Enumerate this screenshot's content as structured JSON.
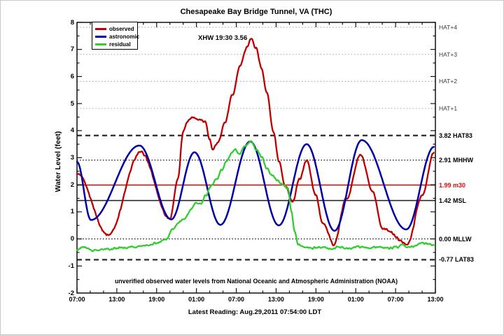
{
  "footnote": "unverified observed water levels from National Oceanic and Atmospheric Administration (NOAA)",
  "caption": "Latest Reading: Aug.29,2011 07:54:00 LDT",
  "chart_data": {
    "type": "line",
    "title": "Chesapeake Bay Bridge Tunnel, VA (THC)",
    "xlabel": "",
    "ylabel": "Water Level (feet)",
    "xlim": [
      0,
      54
    ],
    "ylim": [
      -2,
      8
    ],
    "grid": false,
    "legend_position": "top-left",
    "x_unit": "hours from first tick (6-hour label interval, minor ticks every 2 hours)",
    "x_tick_hours": [
      0,
      6,
      12,
      18,
      24,
      30,
      36,
      42,
      48,
      54
    ],
    "x_tick_labels": [
      "07:00",
      "13:00",
      "19:00",
      "01:00",
      "07:00",
      "13:00",
      "19:00",
      "01:00",
      "07:00",
      "13:00"
    ],
    "y_tick_values": [
      8,
      7,
      6,
      5,
      4,
      3,
      2,
      1,
      0,
      -1,
      -2
    ],
    "y_minor_step": 0.5,
    "annotations": [
      {
        "text": "XHW 19:30 3.56",
        "x_hours": 18.2,
        "y_value": 7.5
      }
    ],
    "reference_lines": [
      {
        "value": 7.82,
        "label": "HAT+4",
        "style": "dotted",
        "line_color": "#aaaaaa",
        "label_color": "#3a3a3a",
        "bold": false
      },
      {
        "value": 6.82,
        "label": "HAT+3",
        "style": "dotted",
        "line_color": "#aaaaaa",
        "label_color": "#3a3a3a",
        "bold": false
      },
      {
        "value": 5.82,
        "label": "HAT+2",
        "style": "dotted",
        "line_color": "#aaaaaa",
        "label_color": "#3a3a3a",
        "bold": false
      },
      {
        "value": 4.82,
        "label": "HAT+1",
        "style": "dotted",
        "line_color": "#aaaaaa",
        "label_color": "#3a3a3a",
        "bold": false
      },
      {
        "value": 3.82,
        "label": "3.82 HAT83",
        "style": "dashed",
        "line_color": "#2b2b2b",
        "label_color": "#000000",
        "bold": true
      },
      {
        "value": 2.91,
        "label": "2.91 MHHW",
        "style": "dotted",
        "line_color": "#1a1a1a",
        "label_color": "#000000",
        "bold": true
      },
      {
        "value": 1.99,
        "label": "1.99 m30",
        "style": "solid",
        "line_color": "#cc1111",
        "label_color": "#cc1111",
        "bold": true
      },
      {
        "value": 1.42,
        "label": "1.42 MSL",
        "style": "solid",
        "line_color": "#2b2b2b",
        "label_color": "#000000",
        "bold": true
      },
      {
        "value": 0.0,
        "label": "0.00 MLLW",
        "style": "dotted",
        "line_color": "#1a1a1a",
        "label_color": "#000000",
        "bold": true
      },
      {
        "value": -0.77,
        "label": "-0.77 LAT83",
        "style": "dashed",
        "line_color": "#2b2b2b",
        "label_color": "#000000",
        "bold": true
      }
    ],
    "series": [
      {
        "name": "observed",
        "color": "#c00000",
        "width": 2.3,
        "noise": 0.05,
        "points": [
          [
            0,
            2.4
          ],
          [
            4.7,
            0.15
          ],
          [
            9.6,
            3.2
          ],
          [
            14.0,
            0.75
          ],
          [
            15.2,
            2.2
          ],
          [
            16.0,
            3.95
          ],
          [
            16.6,
            4.35
          ],
          [
            17.4,
            4.5
          ],
          [
            18.4,
            4.42
          ],
          [
            19.3,
            4.35
          ],
          [
            20.0,
            3.7
          ],
          [
            20.4,
            3.3
          ],
          [
            21.2,
            3.55
          ],
          [
            22.3,
            4.3
          ],
          [
            23.4,
            5.3
          ],
          [
            24.6,
            6.4
          ],
          [
            25.6,
            7.1
          ],
          [
            26.2,
            7.4
          ],
          [
            27.0,
            7.05
          ],
          [
            27.8,
            6.3
          ],
          [
            28.6,
            5.4
          ],
          [
            29.6,
            3.95
          ],
          [
            30.4,
            2.9
          ],
          [
            31.4,
            1.95
          ],
          [
            32.5,
            1.35
          ],
          [
            33.5,
            2.2
          ],
          [
            34.6,
            2.9
          ],
          [
            36.0,
            1.6
          ],
          [
            37.0,
            0.6
          ],
          [
            38.7,
            -0.2
          ],
          [
            40.6,
            1.5
          ],
          [
            42.7,
            3.1
          ],
          [
            44.6,
            1.7
          ],
          [
            46.0,
            0.4
          ],
          [
            49.8,
            -0.18
          ],
          [
            52.0,
            1.6
          ],
          [
            53.8,
            3.2
          ]
        ]
      },
      {
        "name": "astronomic",
        "color": "#0000a8",
        "width": 2.5,
        "noise": 0,
        "points": [
          [
            0,
            2.85
          ],
          [
            2.1,
            0.7
          ],
          [
            9.4,
            3.45
          ],
          [
            14.2,
            0.72
          ],
          [
            17.7,
            3.2
          ],
          [
            21.6,
            0.52
          ],
          [
            26.1,
            3.6
          ],
          [
            30.4,
            0.5
          ],
          [
            34.6,
            3.5
          ],
          [
            38.8,
            0.3
          ],
          [
            42.9,
            3.65
          ],
          [
            49.6,
            0.35
          ],
          [
            53.8,
            3.4
          ]
        ]
      },
      {
        "name": "residual",
        "color": "#33cc33",
        "width": 2.3,
        "noise": 0.045,
        "points": [
          [
            0,
            -0.4
          ],
          [
            1.0,
            -0.3
          ],
          [
            2.5,
            -0.43
          ],
          [
            4.5,
            -0.38
          ],
          [
            6.5,
            -0.33
          ],
          [
            8.5,
            -0.3
          ],
          [
            10.5,
            -0.25
          ],
          [
            12.0,
            -0.15
          ],
          [
            13.5,
            0.0
          ],
          [
            14.4,
            0.35
          ],
          [
            15.3,
            0.6
          ],
          [
            16.2,
            0.75
          ],
          [
            17.2,
            1.1
          ],
          [
            17.9,
            1.32
          ],
          [
            18.6,
            1.3
          ],
          [
            19.4,
            1.6
          ],
          [
            20.2,
            1.95
          ],
          [
            21.0,
            2.2
          ],
          [
            21.8,
            2.55
          ],
          [
            22.6,
            2.9
          ],
          [
            23.2,
            3.15
          ],
          [
            23.8,
            3.3
          ],
          [
            24.4,
            3.12
          ],
          [
            25.2,
            3.38
          ],
          [
            26.2,
            3.62
          ],
          [
            27.0,
            3.3
          ],
          [
            27.8,
            3.05
          ],
          [
            28.6,
            2.6
          ],
          [
            29.4,
            2.35
          ],
          [
            30.2,
            2.18
          ],
          [
            31.0,
            2.0
          ],
          [
            31.8,
            1.88
          ],
          [
            32.3,
            1.0
          ],
          [
            32.8,
            0.3
          ],
          [
            33.3,
            -0.2
          ],
          [
            34.0,
            -0.3
          ],
          [
            35.5,
            -0.33
          ],
          [
            37.0,
            -0.3
          ],
          [
            38.0,
            -0.36
          ],
          [
            39.5,
            -0.3
          ],
          [
            41.0,
            -0.34
          ],
          [
            42.5,
            -0.29
          ],
          [
            44.0,
            -0.34
          ],
          [
            45.5,
            -0.3
          ],
          [
            47.0,
            -0.35
          ],
          [
            48.2,
            -0.3
          ],
          [
            49.0,
            -0.22
          ],
          [
            49.8,
            -0.3
          ],
          [
            50.8,
            -0.28
          ],
          [
            51.7,
            -0.15
          ],
          [
            52.8,
            -0.18
          ],
          [
            53.8,
            -0.22
          ]
        ]
      }
    ]
  }
}
